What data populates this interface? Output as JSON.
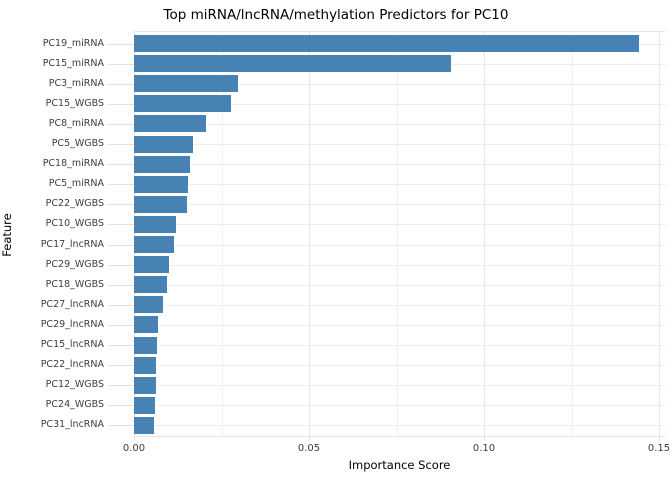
{
  "chart_data": {
    "type": "bar",
    "orientation": "horizontal",
    "title": "Top miRNA/lncRNA/methylation Predictors for PC10",
    "xlabel": "Importance Score",
    "ylabel": "Feature",
    "categories": [
      "PC19_miRNA",
      "PC15_miRNA",
      "PC3_miRNA",
      "PC15_WGBS",
      "PC8_miRNA",
      "PC5_WGBS",
      "PC18_miRNA",
      "PC5_miRNA",
      "PC22_WGBS",
      "PC10_WGBS",
      "PC17_lncRNA",
      "PC29_WGBS",
      "PC18_WGBS",
      "PC27_lncRNA",
      "PC29_lncRNA",
      "PC15_lncRNA",
      "PC22_lncRNA",
      "PC12_WGBS",
      "PC24_WGBS",
      "PC31_lncRNA"
    ],
    "values": [
      0.1443,
      0.0906,
      0.0297,
      0.0277,
      0.0206,
      0.0169,
      0.016,
      0.0154,
      0.0151,
      0.012,
      0.0114,
      0.01,
      0.0094,
      0.0083,
      0.0069,
      0.0066,
      0.0063,
      0.0063,
      0.006,
      0.0057
    ],
    "xlim": [
      0,
      0.1517
    ],
    "x_major_ticks": [
      0,
      0.05,
      0.1,
      0.15
    ],
    "x_tick_labels": [
      "0.00",
      "0.05",
      "0.10",
      "0.15"
    ],
    "x_minor_ticks": [
      0.025,
      0.075,
      0.125
    ],
    "legend": null,
    "grid": true,
    "bar_color": "#4682B4",
    "major_grid_color": "#e5e5e5",
    "minor_grid_color": "#f1f1f1",
    "row_grid_color": "#ededed",
    "axis_text_color": "#3d3d3d",
    "title_color": "#000000",
    "background_color": "#ffffff"
  }
}
